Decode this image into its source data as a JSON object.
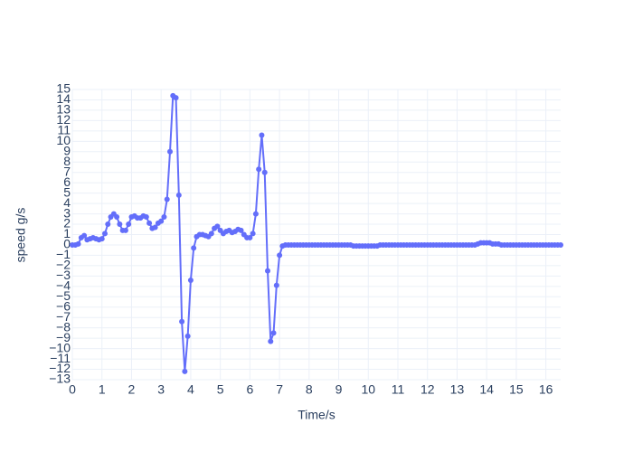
{
  "chart_data": {
    "type": "line",
    "x_label": "Time/s",
    "y_label": "speed g/s",
    "x": [
      0,
      0.1,
      0.2,
      0.3,
      0.4,
      0.5,
      0.6,
      0.7,
      0.8,
      0.9,
      1,
      1.1,
      1.2,
      1.3,
      1.4,
      1.5,
      1.6,
      1.7,
      1.8,
      1.9,
      2,
      2.1,
      2.2,
      2.3,
      2.4,
      2.5,
      2.6,
      2.7,
      2.8,
      2.9,
      3,
      3.1,
      3.2,
      3.3,
      3.4,
      3.5,
      3.6,
      3.7,
      3.8,
      3.9,
      4,
      4.1,
      4.2,
      4.3,
      4.4,
      4.5,
      4.6,
      4.7,
      4.8,
      4.9,
      5,
      5.1,
      5.2,
      5.3,
      5.4,
      5.5,
      5.6,
      5.7,
      5.8,
      5.9,
      6,
      6.1,
      6.2,
      6.3,
      6.4,
      6.5,
      6.6,
      6.7,
      6.8,
      6.9,
      7,
      7.1,
      7.2,
      7.3,
      7.4,
      7.5,
      7.6,
      7.7,
      7.8,
      7.9,
      8,
      8.1,
      8.2,
      8.3,
      8.4,
      8.5,
      8.6,
      8.7,
      8.8,
      8.9,
      9,
      9.1,
      9.2,
      9.3,
      9.4,
      9.5,
      9.6,
      9.7,
      9.8,
      9.9,
      10,
      10.1,
      10.2,
      10.3,
      10.4,
      10.5,
      10.6,
      10.7,
      10.8,
      10.9,
      11,
      11.1,
      11.2,
      11.3,
      11.4,
      11.5,
      11.6,
      11.7,
      11.8,
      11.9,
      12,
      12.1,
      12.2,
      12.3,
      12.4,
      12.5,
      12.6,
      12.7,
      12.8,
      12.9,
      13,
      13.1,
      13.2,
      13.3,
      13.4,
      13.5,
      13.6,
      13.7,
      13.8,
      13.9,
      14,
      14.1,
      14.2,
      14.3,
      14.4,
      14.5,
      14.6,
      14.7,
      14.8,
      14.9,
      15,
      15.1,
      15.2,
      15.3,
      15.4,
      15.5,
      15.6,
      15.7,
      15.8,
      15.9,
      16,
      16.1,
      16.2,
      16.3,
      16.4,
      16.5
    ],
    "series": [
      {
        "color": "#636efa",
        "values": [
          0,
          0,
          0.1,
          0.7,
          0.9,
          0.5,
          0.6,
          0.7,
          0.6,
          0.5,
          0.6,
          1.1,
          2.0,
          2.7,
          3.0,
          2.7,
          2.0,
          1.4,
          1.4,
          2.0,
          2.7,
          2.8,
          2.6,
          2.6,
          2.8,
          2.7,
          2.1,
          1.6,
          1.7,
          2.1,
          2.3,
          2.7,
          4.4,
          9.0,
          14.4,
          14.2,
          4.8,
          -7.4,
          -12.2,
          -8.8,
          -3.4,
          -0.3,
          0.8,
          1.0,
          1.0,
          0.9,
          0.8,
          1.1,
          1.6,
          1.8,
          1.4,
          1.1,
          1.3,
          1.4,
          1.2,
          1.3,
          1.5,
          1.4,
          1.0,
          0.7,
          0.7,
          1.1,
          3.0,
          7.3,
          10.6,
          7.0,
          -2.5,
          -9.3,
          -8.5,
          -3.9,
          -1.0,
          -0.1,
          0,
          0,
          0,
          0,
          0,
          0,
          0,
          0,
          0,
          0,
          0,
          0,
          0,
          0,
          0,
          0,
          0,
          0,
          0,
          0,
          0,
          0,
          0,
          -0.1,
          -0.1,
          -0.1,
          -0.1,
          -0.1,
          -0.1,
          -0.1,
          -0.1,
          -0.1,
          0,
          0,
          0,
          0,
          0,
          0,
          0,
          0,
          0,
          0,
          0,
          0,
          0,
          0,
          0,
          0,
          0,
          0,
          0,
          0,
          0,
          0,
          0,
          0,
          0,
          0,
          0,
          0,
          0,
          0,
          0,
          0,
          0,
          0.1,
          0.2,
          0.2,
          0.2,
          0.2,
          0.1,
          0.1,
          0.1,
          0,
          0,
          0,
          0,
          0,
          0,
          0,
          0,
          0,
          0,
          0,
          0,
          0,
          0,
          0,
          0,
          0,
          0,
          0,
          0,
          0
        ]
      }
    ],
    "xlim": [
      0,
      16.5
    ],
    "ylim": [
      -13,
      15
    ],
    "xticks": [
      0,
      1,
      2,
      3,
      4,
      5,
      6,
      7,
      8,
      9,
      10,
      11,
      12,
      13,
      14,
      15,
      16
    ],
    "yticks": [
      {
        "value": -13,
        "label": "−13"
      },
      {
        "value": -12,
        "label": "−12"
      },
      {
        "value": -11,
        "label": "−11"
      },
      {
        "value": -10,
        "label": "−10"
      },
      {
        "value": -9,
        "label": "−9"
      },
      {
        "value": -8,
        "label": "−8"
      },
      {
        "value": -7,
        "label": "−7"
      },
      {
        "value": -6,
        "label": "−6"
      },
      {
        "value": -5,
        "label": "−5"
      },
      {
        "value": -4,
        "label": "−4"
      },
      {
        "value": -3,
        "label": "−3"
      },
      {
        "value": -2,
        "label": "−2"
      },
      {
        "value": -1,
        "label": "−1"
      },
      0,
      1,
      2,
      3,
      4,
      5,
      6,
      7,
      8,
      9,
      10,
      11,
      12,
      13,
      14,
      15
    ],
    "grid": true
  }
}
